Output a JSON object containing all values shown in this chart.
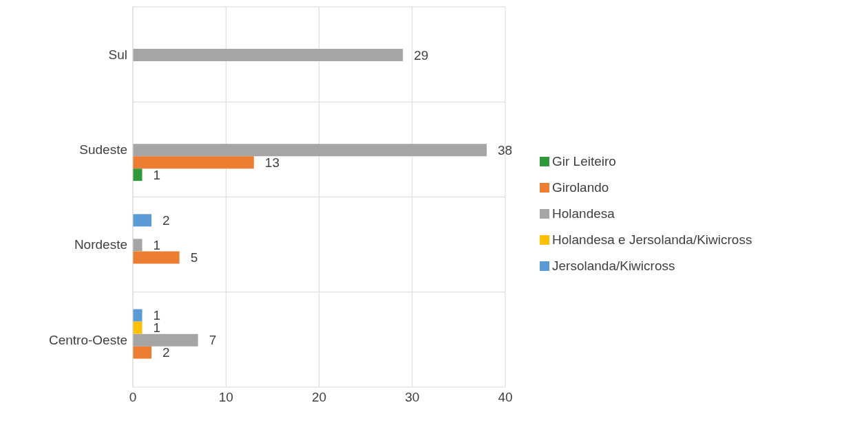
{
  "chart_data": {
    "type": "bar",
    "orientation": "horizontal",
    "categories": [
      "Sul",
      "Sudeste",
      "Nordeste",
      "Centro-Oeste"
    ],
    "series": [
      {
        "name": "Jersolanda/Kiwicross",
        "color": "#5b9bd5",
        "values": [
          null,
          null,
          2,
          1
        ]
      },
      {
        "name": "Holandesa e Jersolanda/Kiwicross",
        "color": "#ffc000",
        "values": [
          null,
          null,
          null,
          1
        ]
      },
      {
        "name": "Holandesa",
        "color": "#a5a5a5",
        "values": [
          29,
          38,
          1,
          7
        ]
      },
      {
        "name": "Girolando",
        "color": "#ed7d31",
        "values": [
          null,
          13,
          5,
          2
        ]
      },
      {
        "name": "Gir Leiteiro",
        "color": "#2e9a3c",
        "values": [
          null,
          1,
          null,
          null
        ]
      }
    ],
    "xlim": [
      0,
      40
    ],
    "xticks": [
      0,
      10,
      20,
      30,
      40
    ],
    "grid": true,
    "legend": "right",
    "data_labels": true
  }
}
